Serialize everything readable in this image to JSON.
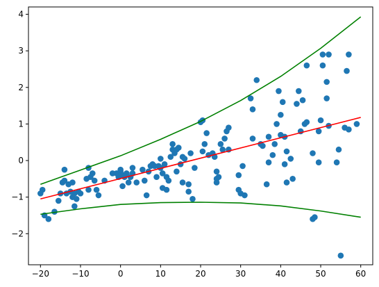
{
  "chart_data": {
    "type": "scatter",
    "title": "",
    "xlabel": "",
    "ylabel": "",
    "xlim": [
      -23,
      63
    ],
    "ylim": [
      -2.85,
      4.2
    ],
    "x_ticks": [
      -20,
      -10,
      0,
      10,
      20,
      30,
      40,
      50,
      60
    ],
    "y_ticks": [
      -2,
      -1,
      0,
      1,
      2,
      3,
      4
    ],
    "grid": false,
    "legend": "none",
    "colors": {
      "points": "#1f77b4",
      "fit_line": "#ff0000",
      "band": "#008000"
    },
    "points": [
      [
        -20,
        -0.9
      ],
      [
        -19.5,
        -0.8
      ],
      [
        -19,
        -1.5
      ],
      [
        -18,
        -1.6
      ],
      [
        -16.5,
        -1.4
      ],
      [
        -15.5,
        -1.1
      ],
      [
        -15,
        -0.9
      ],
      [
        -14.5,
        -0.6
      ],
      [
        -14,
        -0.25
      ],
      [
        -14,
        -0.55
      ],
      [
        -13.5,
        -0.9
      ],
      [
        -13,
        -0.65
      ],
      [
        -12.5,
        -0.85
      ],
      [
        -12,
        -0.6
      ],
      [
        -12,
        -1.0
      ],
      [
        -11.5,
        -0.9
      ],
      [
        -11.5,
        -1.25
      ],
      [
        -11,
        -1.05
      ],
      [
        -10.5,
        -0.85
      ],
      [
        -10,
        -0.9
      ],
      [
        -8.5,
        -0.5
      ],
      [
        -8,
        -0.8
      ],
      [
        -8,
        -0.2
      ],
      [
        -7.5,
        -0.45
      ],
      [
        -7,
        -0.35
      ],
      [
        -6.5,
        -0.55
      ],
      [
        -6,
        -0.8
      ],
      [
        -5.5,
        -0.95
      ],
      [
        -4,
        -0.55
      ],
      [
        -2,
        -0.35
      ],
      [
        -1,
        -0.35
      ],
      [
        -0.5,
        -0.45
      ],
      [
        0,
        -0.3
      ],
      [
        0,
        -0.25
      ],
      [
        0.5,
        -0.7
      ],
      [
        0.5,
        -0.4
      ],
      [
        1,
        -0.45
      ],
      [
        1.5,
        -0.35
      ],
      [
        2,
        -0.6
      ],
      [
        2.5,
        -0.45
      ],
      [
        3,
        -0.2
      ],
      [
        3,
        -0.35
      ],
      [
        4,
        -0.6
      ],
      [
        5.5,
        -0.25
      ],
      [
        6,
        -0.55
      ],
      [
        6.5,
        -0.95
      ],
      [
        7,
        -0.3
      ],
      [
        7.5,
        -0.15
      ],
      [
        8,
        -0.1
      ],
      [
        8.5,
        -0.15
      ],
      [
        9,
        -0.45
      ],
      [
        9.5,
        -0.15
      ],
      [
        10,
        0.05
      ],
      [
        10,
        -0.2
      ],
      [
        10.5,
        -0.35
      ],
      [
        10.5,
        -0.75
      ],
      [
        11,
        -0.1
      ],
      [
        11.5,
        -0.45
      ],
      [
        11.5,
        -0.8
      ],
      [
        12,
        -0.55
      ],
      [
        12.5,
        0.1
      ],
      [
        13,
        0.3
      ],
      [
        13,
        0.45
      ],
      [
        13.5,
        0.2
      ],
      [
        14,
        -0.3
      ],
      [
        14,
        0.3
      ],
      [
        14.5,
        0.35
      ],
      [
        15,
        -0.1
      ],
      [
        15.5,
        -0.6
      ],
      [
        15.5,
        0.1
      ],
      [
        16,
        0.05
      ],
      [
        17,
        -0.85
      ],
      [
        17,
        -0.65
      ],
      [
        17.5,
        0.2
      ],
      [
        18,
        -1.05
      ],
      [
        18.5,
        -0.2
      ],
      [
        20,
        1.05
      ],
      [
        20.5,
        0.25
      ],
      [
        20.5,
        1.1
      ],
      [
        21,
        0.45
      ],
      [
        21.5,
        0.75
      ],
      [
        22,
        0.15
      ],
      [
        23,
        0.2
      ],
      [
        23.5,
        0.1
      ],
      [
        24,
        -0.3
      ],
      [
        24,
        -0.5
      ],
      [
        24,
        -0.6
      ],
      [
        24.5,
        -0.45
      ],
      [
        25,
        0.45
      ],
      [
        25.5,
        0.3
      ],
      [
        26,
        0.6
      ],
      [
        26.5,
        0.8
      ],
      [
        27,
        0.9
      ],
      [
        27,
        0.3
      ],
      [
        29.5,
        -0.8
      ],
      [
        29.5,
        -0.4
      ],
      [
        30,
        -0.9
      ],
      [
        30.5,
        -0.15
      ],
      [
        31,
        -0.95
      ],
      [
        32.5,
        1.7
      ],
      [
        33,
        1.4
      ],
      [
        33,
        0.6
      ],
      [
        34,
        2.2
      ],
      [
        35,
        0.45
      ],
      [
        35.5,
        0.4
      ],
      [
        36.5,
        -0.65
      ],
      [
        37,
        -0.05
      ],
      [
        37,
        0.65
      ],
      [
        38,
        0.15
      ],
      [
        38.5,
        0.45
      ],
      [
        39,
        1.0
      ],
      [
        39.5,
        1.9
      ],
      [
        40,
        0.7
      ],
      [
        40,
        1.25
      ],
      [
        40.5,
        1.6
      ],
      [
        41,
        0.65
      ],
      [
        41,
        -0.1
      ],
      [
        41.5,
        -0.6
      ],
      [
        41.5,
        0.25
      ],
      [
        42.5,
        0.05
      ],
      [
        43,
        -0.5
      ],
      [
        44,
        1.55
      ],
      [
        44.5,
        1.9
      ],
      [
        45,
        0.8
      ],
      [
        45.5,
        1.65
      ],
      [
        46,
        1.0
      ],
      [
        46.5,
        1.05
      ],
      [
        46.5,
        2.6
      ],
      [
        48,
        0.2
      ],
      [
        48,
        -1.6
      ],
      [
        48.5,
        -1.55
      ],
      [
        49.5,
        -0.05
      ],
      [
        49.5,
        0.8
      ],
      [
        50,
        1.1
      ],
      [
        50.5,
        2.9
      ],
      [
        50.5,
        2.6
      ],
      [
        51.5,
        1.7
      ],
      [
        51.5,
        2.15
      ],
      [
        52,
        2.9
      ],
      [
        52,
        0.95
      ],
      [
        54,
        -0.05
      ],
      [
        54.5,
        0.3
      ],
      [
        55,
        -2.6
      ],
      [
        56,
        0.9
      ],
      [
        56.5,
        2.45
      ],
      [
        57,
        0.85
      ],
      [
        57,
        2.9
      ],
      [
        59,
        1.0
      ]
    ],
    "fit_line": [
      [
        -20,
        -1.05
      ],
      [
        60,
        1.18
      ]
    ],
    "band_upper": [
      [
        -20,
        -0.65
      ],
      [
        -10,
        -0.26
      ],
      [
        0,
        0.13
      ],
      [
        10,
        0.58
      ],
      [
        20,
        1.07
      ],
      [
        30,
        1.64
      ],
      [
        40,
        2.3
      ],
      [
        50,
        3.07
      ],
      [
        60,
        3.93
      ]
    ],
    "band_lower": [
      [
        -20,
        -1.47
      ],
      [
        -10,
        -1.32
      ],
      [
        0,
        -1.2
      ],
      [
        10,
        -1.15
      ],
      [
        20,
        -1.14
      ],
      [
        30,
        -1.16
      ],
      [
        40,
        -1.24
      ],
      [
        50,
        -1.38
      ],
      [
        60,
        -1.55
      ]
    ]
  }
}
